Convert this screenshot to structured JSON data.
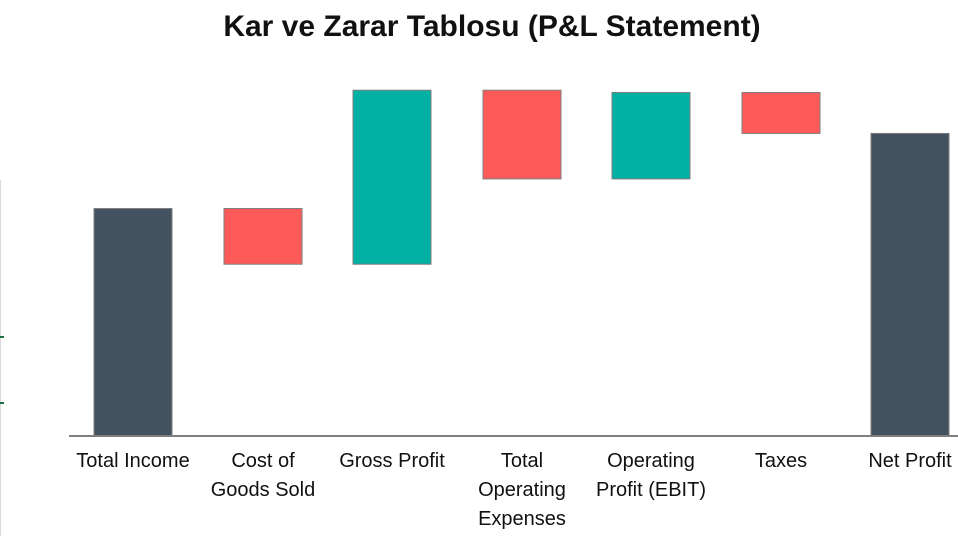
{
  "chart_data": {
    "type": "waterfall",
    "title": "Kar ve Zarar Tablosu (P&L Statement)",
    "categories": [
      [
        "Total Income"
      ],
      [
        "Cost of",
        "Goods Sold"
      ],
      [
        "Gross Profit"
      ],
      [
        "Total",
        "Operating",
        "Expenses"
      ],
      [
        "Operating",
        "Profit (EBIT)"
      ],
      [
        "Taxes"
      ],
      [
        "Net Profit"
      ]
    ],
    "bars": [
      {
        "kind": "total",
        "start": 0,
        "end": 100
      },
      {
        "kind": "decrease",
        "start": 100,
        "end": 75.5
      },
      {
        "kind": "increase",
        "start": 75.5,
        "end": 152
      },
      {
        "kind": "decrease",
        "start": 152,
        "end": 113
      },
      {
        "kind": "increase",
        "start": 113,
        "end": 151
      },
      {
        "kind": "decrease",
        "start": 151,
        "end": 133
      },
      {
        "kind": "total",
        "start": 0,
        "end": 133
      }
    ],
    "ylim": [
      0,
      160
    ],
    "grid": false,
    "legend": "none",
    "colors": {
      "total": "#44515e",
      "increase": "#01b2a4",
      "decrease": "#fe5a59",
      "axis": "#7f7f7f",
      "bar_outline": "#7f7f7f",
      "accent": "#1e7145"
    }
  }
}
